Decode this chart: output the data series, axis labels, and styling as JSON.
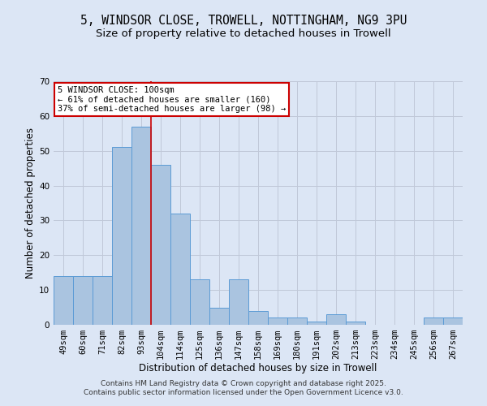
{
  "title_line1": "5, WINDSOR CLOSE, TROWELL, NOTTINGHAM, NG9 3PU",
  "title_line2": "Size of property relative to detached houses in Trowell",
  "xlabel": "Distribution of detached houses by size in Trowell",
  "ylabel": "Number of detached properties",
  "categories": [
    "49sqm",
    "60sqm",
    "71sqm",
    "82sqm",
    "93sqm",
    "104sqm",
    "114sqm",
    "125sqm",
    "136sqm",
    "147sqm",
    "158sqm",
    "169sqm",
    "180sqm",
    "191sqm",
    "202sqm",
    "213sqm",
    "223sqm",
    "234sqm",
    "245sqm",
    "256sqm",
    "267sqm"
  ],
  "values": [
    14,
    14,
    14,
    51,
    57,
    46,
    32,
    13,
    5,
    13,
    4,
    2,
    2,
    1,
    3,
    1,
    0,
    0,
    0,
    2,
    2
  ],
  "bar_color": "#aac4e0",
  "bar_edge_color": "#5b9bd5",
  "bar_width": 1.0,
  "red_line_x": 4.5,
  "red_line_color": "#cc0000",
  "annotation_text": "5 WINDSOR CLOSE: 100sqm\n← 61% of detached houses are smaller (160)\n37% of semi-detached houses are larger (98) →",
  "annotation_box_edge": "#cc0000",
  "ylim": [
    0,
    70
  ],
  "yticks": [
    0,
    10,
    20,
    30,
    40,
    50,
    60,
    70
  ],
  "grid_color": "#c0c8d8",
  "background_color": "#dce6f5",
  "fig_background_color": "#dce6f5",
  "footer_line1": "Contains HM Land Registry data © Crown copyright and database right 2025.",
  "footer_line2": "Contains public sector information licensed under the Open Government Licence v3.0.",
  "title_fontsize": 10.5,
  "subtitle_fontsize": 9.5,
  "axis_label_fontsize": 8.5,
  "tick_fontsize": 7.5,
  "annotation_fontsize": 7.5,
  "footer_fontsize": 6.5
}
